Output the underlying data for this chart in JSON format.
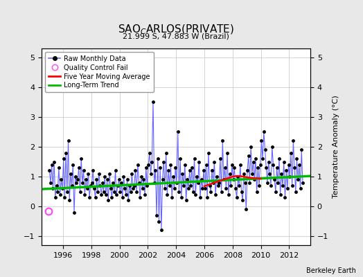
{
  "title_main": "SAO$_C$ARLOS(PRIVATE)",
  "title_sub": "21.999 S, 47.883 W (Brazil)",
  "ylabel_right": "Temperature Anomaly (°C)",
  "attribution": "Berkeley Earth",
  "xlim": [
    1994.5,
    2013.5
  ],
  "ylim": [
    -1.3,
    5.3
  ],
  "yticks": [
    -1,
    0,
    1,
    2,
    3,
    4,
    5
  ],
  "xticks": [
    1996,
    1998,
    2000,
    2002,
    2004,
    2006,
    2008,
    2010,
    2012
  ],
  "bg_color": "#e8e8e8",
  "plot_bg_color": "#ffffff",
  "raw_line_color": "#6666ff",
  "raw_dot_color": "#000000",
  "qc_color": "#ff44ff",
  "ma_color": "#ff0000",
  "trend_color": "#00bb00",
  "raw_data_x": [
    1995.042,
    1995.125,
    1995.208,
    1995.292,
    1995.375,
    1995.458,
    1995.542,
    1995.625,
    1995.708,
    1995.792,
    1995.875,
    1995.958,
    1996.042,
    1996.125,
    1996.208,
    1996.292,
    1996.375,
    1996.458,
    1996.542,
    1996.625,
    1996.708,
    1996.792,
    1996.875,
    1996.958,
    1997.042,
    1997.125,
    1997.208,
    1997.292,
    1997.375,
    1997.458,
    1997.542,
    1997.625,
    1997.708,
    1997.792,
    1997.875,
    1997.958,
    1998.042,
    1998.125,
    1998.208,
    1998.292,
    1998.375,
    1998.458,
    1998.542,
    1998.625,
    1998.708,
    1998.792,
    1998.875,
    1998.958,
    1999.042,
    1999.125,
    1999.208,
    1999.292,
    1999.375,
    1999.458,
    1999.542,
    1999.625,
    1999.708,
    1999.792,
    1999.875,
    1999.958,
    2000.042,
    2000.125,
    2000.208,
    2000.292,
    2000.375,
    2000.458,
    2000.542,
    2000.625,
    2000.708,
    2000.792,
    2000.875,
    2000.958,
    2001.042,
    2001.125,
    2001.208,
    2001.292,
    2001.375,
    2001.458,
    2001.542,
    2001.625,
    2001.708,
    2001.792,
    2001.875,
    2001.958,
    2002.042,
    2002.125,
    2002.208,
    2002.292,
    2002.375,
    2002.458,
    2002.542,
    2002.625,
    2002.708,
    2002.792,
    2002.875,
    2002.958,
    2003.042,
    2003.125,
    2003.208,
    2003.292,
    2003.375,
    2003.458,
    2003.542,
    2003.625,
    2003.708,
    2003.792,
    2003.875,
    2003.958,
    2004.042,
    2004.125,
    2004.208,
    2004.292,
    2004.375,
    2004.458,
    2004.542,
    2004.625,
    2004.708,
    2004.792,
    2004.875,
    2004.958,
    2005.042,
    2005.125,
    2005.208,
    2005.292,
    2005.375,
    2005.458,
    2005.542,
    2005.625,
    2005.708,
    2005.792,
    2005.875,
    2005.958,
    2006.042,
    2006.125,
    2006.208,
    2006.292,
    2006.375,
    2006.458,
    2006.542,
    2006.625,
    2006.708,
    2006.792,
    2006.875,
    2006.958,
    2007.042,
    2007.125,
    2007.208,
    2007.292,
    2007.375,
    2007.458,
    2007.542,
    2007.625,
    2007.708,
    2007.792,
    2007.875,
    2007.958,
    2008.042,
    2008.125,
    2008.208,
    2008.292,
    2008.375,
    2008.458,
    2008.542,
    2008.625,
    2008.708,
    2008.792,
    2008.875,
    2008.958,
    2009.042,
    2009.125,
    2009.208,
    2009.292,
    2009.375,
    2009.458,
    2009.542,
    2009.625,
    2009.708,
    2009.792,
    2009.875,
    2009.958,
    2010.042,
    2010.125,
    2010.208,
    2010.292,
    2010.375,
    2010.458,
    2010.542,
    2010.625,
    2010.708,
    2010.792,
    2010.875,
    2010.958,
    2011.042,
    2011.125,
    2011.208,
    2011.292,
    2011.375,
    2011.458,
    2011.542,
    2011.625,
    2011.708,
    2011.792,
    2011.875,
    2011.958,
    2012.042,
    2012.125,
    2012.208,
    2012.292,
    2012.375,
    2012.458,
    2012.542,
    2012.625,
    2012.708,
    2012.792,
    2012.875,
    2012.958
  ],
  "raw_data_y": [
    1.2,
    0.8,
    1.4,
    0.6,
    1.5,
    0.3,
    0.7,
    0.5,
    1.3,
    0.4,
    0.9,
    0.6,
    1.6,
    0.3,
    1.8,
    0.5,
    2.2,
    0.2,
    1.1,
    0.7,
    1.4,
    -0.2,
    1.0,
    0.8,
    0.9,
    1.3,
    0.5,
    1.6,
    0.8,
    1.2,
    0.4,
    0.9,
    0.6,
    1.1,
    0.3,
    0.7,
    0.8,
    1.2,
    0.6,
    0.3,
    0.9,
    0.5,
    1.1,
    0.7,
    0.4,
    0.8,
    0.5,
    1.0,
    0.4,
    0.9,
    0.2,
    1.1,
    0.6,
    0.3,
    0.8,
    0.5,
    1.2,
    0.4,
    0.7,
    0.9,
    0.5,
    0.8,
    0.3,
    1.0,
    0.6,
    0.4,
    0.9,
    0.2,
    0.7,
    0.5,
    1.1,
    0.6,
    0.7,
    1.2,
    0.5,
    1.4,
    0.8,
    0.3,
    1.0,
    0.6,
    0.9,
    0.4,
    1.3,
    0.7,
    1.4,
    1.8,
    1.1,
    1.5,
    3.5,
    0.8,
    1.2,
    -0.3,
    1.6,
    -0.5,
    1.3,
    -0.8,
    0.9,
    1.5,
    0.6,
    1.8,
    0.4,
    1.2,
    0.7,
    1.4,
    0.3,
    1.0,
    0.6,
    1.3,
    0.8,
    2.5,
    0.5,
    1.6,
    0.3,
    1.1,
    0.7,
    1.4,
    0.2,
    0.9,
    0.6,
    1.2,
    0.7,
    1.3,
    0.5,
    1.6,
    0.4,
    1.0,
    0.8,
    1.5,
    0.3,
    0.9,
    0.6,
    1.2,
    0.6,
    1.4,
    0.3,
    1.8,
    0.7,
    0.5,
    1.2,
    0.8,
    1.5,
    0.4,
    1.0,
    0.7,
    0.8,
    1.6,
    0.5,
    2.2,
    0.9,
    1.3,
    0.6,
    1.8,
    0.4,
    1.1,
    0.7,
    1.4,
    0.9,
    1.3,
    0.6,
    0.3,
    1.0,
    0.7,
    1.4,
    0.5,
    0.2,
    1.1,
    0.8,
    -0.1,
    1.2,
    1.7,
    0.8,
    2.0,
    1.1,
    1.5,
    0.9,
    1.6,
    0.5,
    1.3,
    0.7,
    1.4,
    2.2,
    1.6,
    2.5,
    1.9,
    1.3,
    0.8,
    1.5,
    1.1,
    0.7,
    2.0,
    1.4,
    0.9,
    0.5,
    1.3,
    0.8,
    1.6,
    0.4,
    1.1,
    0.7,
    1.5,
    0.3,
    1.2,
    0.6,
    1.4,
    1.0,
    1.8,
    0.7,
    2.2,
    1.3,
    0.5,
    1.6,
    0.9,
    1.4,
    0.6,
    1.9,
    0.8
  ],
  "qc_fail_x": [
    1995.0
  ],
  "qc_fail_y": [
    -0.15
  ],
  "trend_x": [
    1994.5,
    2013.5
  ],
  "trend_y": [
    0.58,
    1.02
  ],
  "ma_x": [
    2006.0,
    2006.25,
    2006.5,
    2006.75,
    2007.0,
    2007.25,
    2007.5,
    2007.75,
    2008.0,
    2008.25,
    2008.5,
    2008.75,
    2009.0,
    2009.25,
    2009.5,
    2009.75,
    2010.0
  ],
  "ma_y": [
    0.68,
    0.72,
    0.76,
    0.8,
    0.85,
    0.88,
    0.92,
    0.96,
    1.0,
    1.02,
    1.02,
    1.0,
    0.98,
    0.96,
    0.95,
    0.94,
    0.93
  ]
}
